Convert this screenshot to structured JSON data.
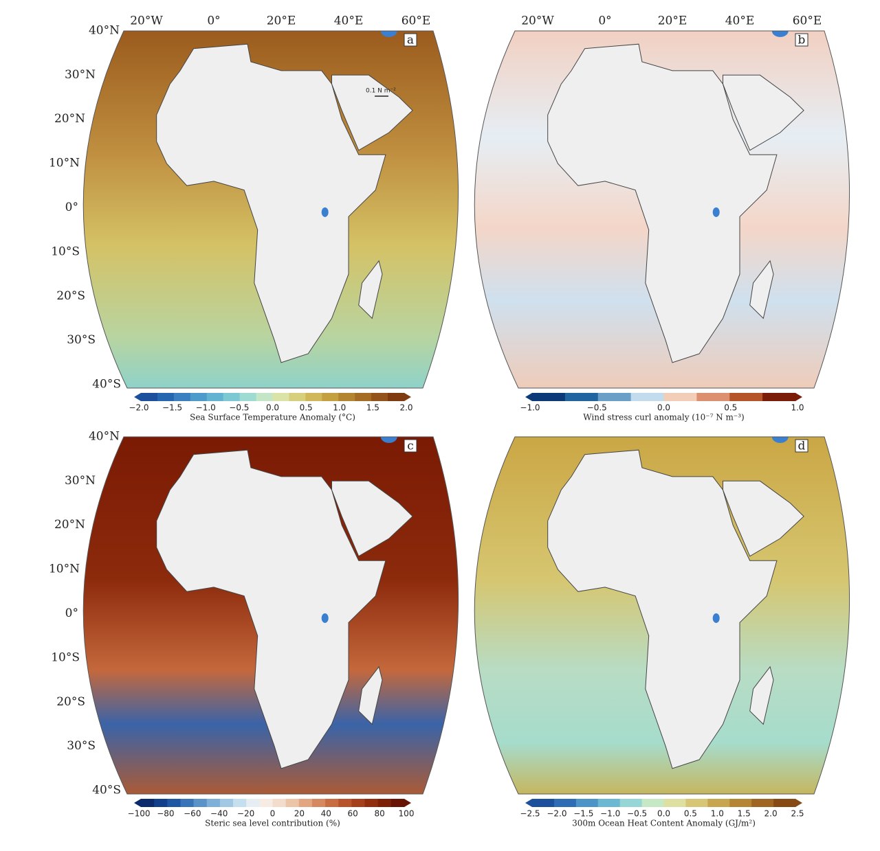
{
  "longitude_labels": [
    "20°W",
    "0°",
    "20°E",
    "40°E",
    "60°E"
  ],
  "latitude_labels": [
    "40°N",
    "30°N",
    "20°N",
    "10°N",
    "0°",
    "10°S",
    "20°S",
    "30°S",
    "40°S"
  ],
  "vector_scale_label": "0.1 N m⁻²",
  "panels": [
    {
      "letter": "a",
      "colorbar": {
        "title": "Sea Surface Temperature Anomaly (°C)",
        "ticks": [
          "−2.0",
          "−1.5",
          "−1.0",
          "−0.5",
          "0.0",
          "0.5",
          "1.0",
          "1.5",
          "2.0"
        ],
        "colors": [
          "#1c4f9c",
          "#2566b0",
          "#3a80c0",
          "#4d9bcb",
          "#62b3d2",
          "#7cc9d4",
          "#9ddbd3",
          "#c4e6c6",
          "#dbe3a6",
          "#d8cf7c",
          "#d0b85a",
          "#c4a040",
          "#b48530",
          "#a46c24",
          "#93531a",
          "#7f3a10"
        ]
      }
    },
    {
      "letter": "b",
      "colorbar": {
        "title": "Wind stress curl anomaly (10⁻⁷ N m⁻³)",
        "ticks": [
          "−1.0",
          "−0.5",
          "0.0",
          "0.5",
          "1.0"
        ],
        "colors": [
          "#0c3a78",
          "#2064a0",
          "#6aa0c8",
          "#c2dced",
          "#f2cdb8",
          "#dd9070",
          "#b45428",
          "#7a1c08"
        ]
      }
    },
    {
      "letter": "c",
      "colorbar": {
        "title": "Steric sea level contribution (%)",
        "ticks": [
          "−100",
          "−80",
          "−60",
          "−40",
          "−20",
          "0",
          "20",
          "40",
          "60",
          "80",
          "100"
        ],
        "colors": [
          "#0a2a6c",
          "#123f8a",
          "#1f57a2",
          "#3a74b8",
          "#5a93c8",
          "#7eb0d8",
          "#a2c9e4",
          "#c6dfee",
          "#e6eef4",
          "#f6ece4",
          "#f2dccc",
          "#ecc4a8",
          "#e2a682",
          "#d68860",
          "#c86c42",
          "#b8542c",
          "#a4401c",
          "#902e10",
          "#7c2008",
          "#681404"
        ]
      }
    },
    {
      "letter": "d",
      "colorbar": {
        "title": "300m Ocean Heat Content Anomaly (GJ/m²)",
        "ticks": [
          "−2.5",
          "−2.0",
          "−1.5",
          "−1.0",
          "−0.5",
          "0.0",
          "0.5",
          "1.0",
          "1.5",
          "2.0",
          "2.5"
        ],
        "colors": [
          "#1c4f9c",
          "#2e6cb4",
          "#4c94c8",
          "#6cb8d2",
          "#96d6d6",
          "#c6e8c4",
          "#dde0a0",
          "#d6c676",
          "#c8a650",
          "#b48634",
          "#9e6622",
          "#864a14"
        ]
      }
    }
  ]
}
